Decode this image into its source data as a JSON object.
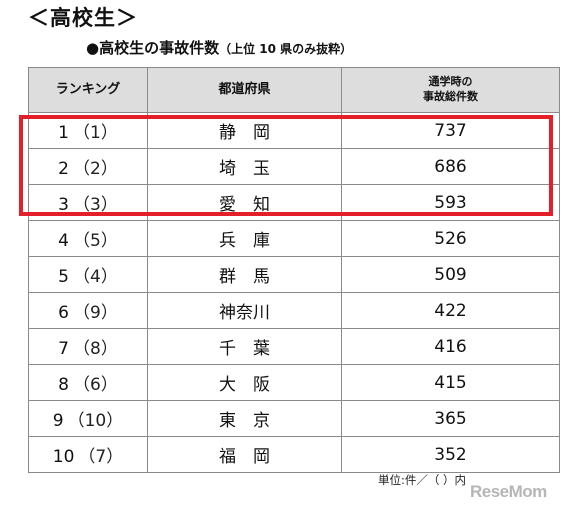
{
  "heading": "＜高校生＞",
  "subheading": {
    "main": "●高校生の事故件数",
    "note": "（上位 10 県のみ抜粋）"
  },
  "table": {
    "headers": {
      "rank": "ランキング",
      "prefecture": "都道府県",
      "count_line1": "通学時の",
      "count_line2": "事故総件数"
    },
    "rows": [
      {
        "rank": "1",
        "prev": "（1）",
        "prefecture": "静　岡",
        "count": "737"
      },
      {
        "rank": "2",
        "prev": "（2）",
        "prefecture": "埼　玉",
        "count": "686"
      },
      {
        "rank": "3",
        "prev": "（3）",
        "prefecture": "愛　知",
        "count": "593"
      },
      {
        "rank": "4",
        "prev": "（5）",
        "prefecture": "兵　庫",
        "count": "526"
      },
      {
        "rank": "5",
        "prev": "（4）",
        "prefecture": "群　馬",
        "count": "509"
      },
      {
        "rank": "6",
        "prev": "（9）",
        "prefecture": "神奈川",
        "count": "422"
      },
      {
        "rank": "7",
        "prev": "（8）",
        "prefecture": "千　葉",
        "count": "416"
      },
      {
        "rank": "8",
        "prev": "（6）",
        "prefecture": "大　阪",
        "count": "415"
      },
      {
        "rank": "9",
        "prev": "（10）",
        "prefecture": "東　京",
        "count": "365"
      },
      {
        "rank": "10",
        "prev": "（7）",
        "prefecture": "福　岡",
        "count": "352"
      }
    ]
  },
  "unit_note": "単位:件／（ ）内",
  "watermark": "ReseMom",
  "colors": {
    "highlight_border": "#e3202a",
    "header_bg": "#dddddd"
  }
}
